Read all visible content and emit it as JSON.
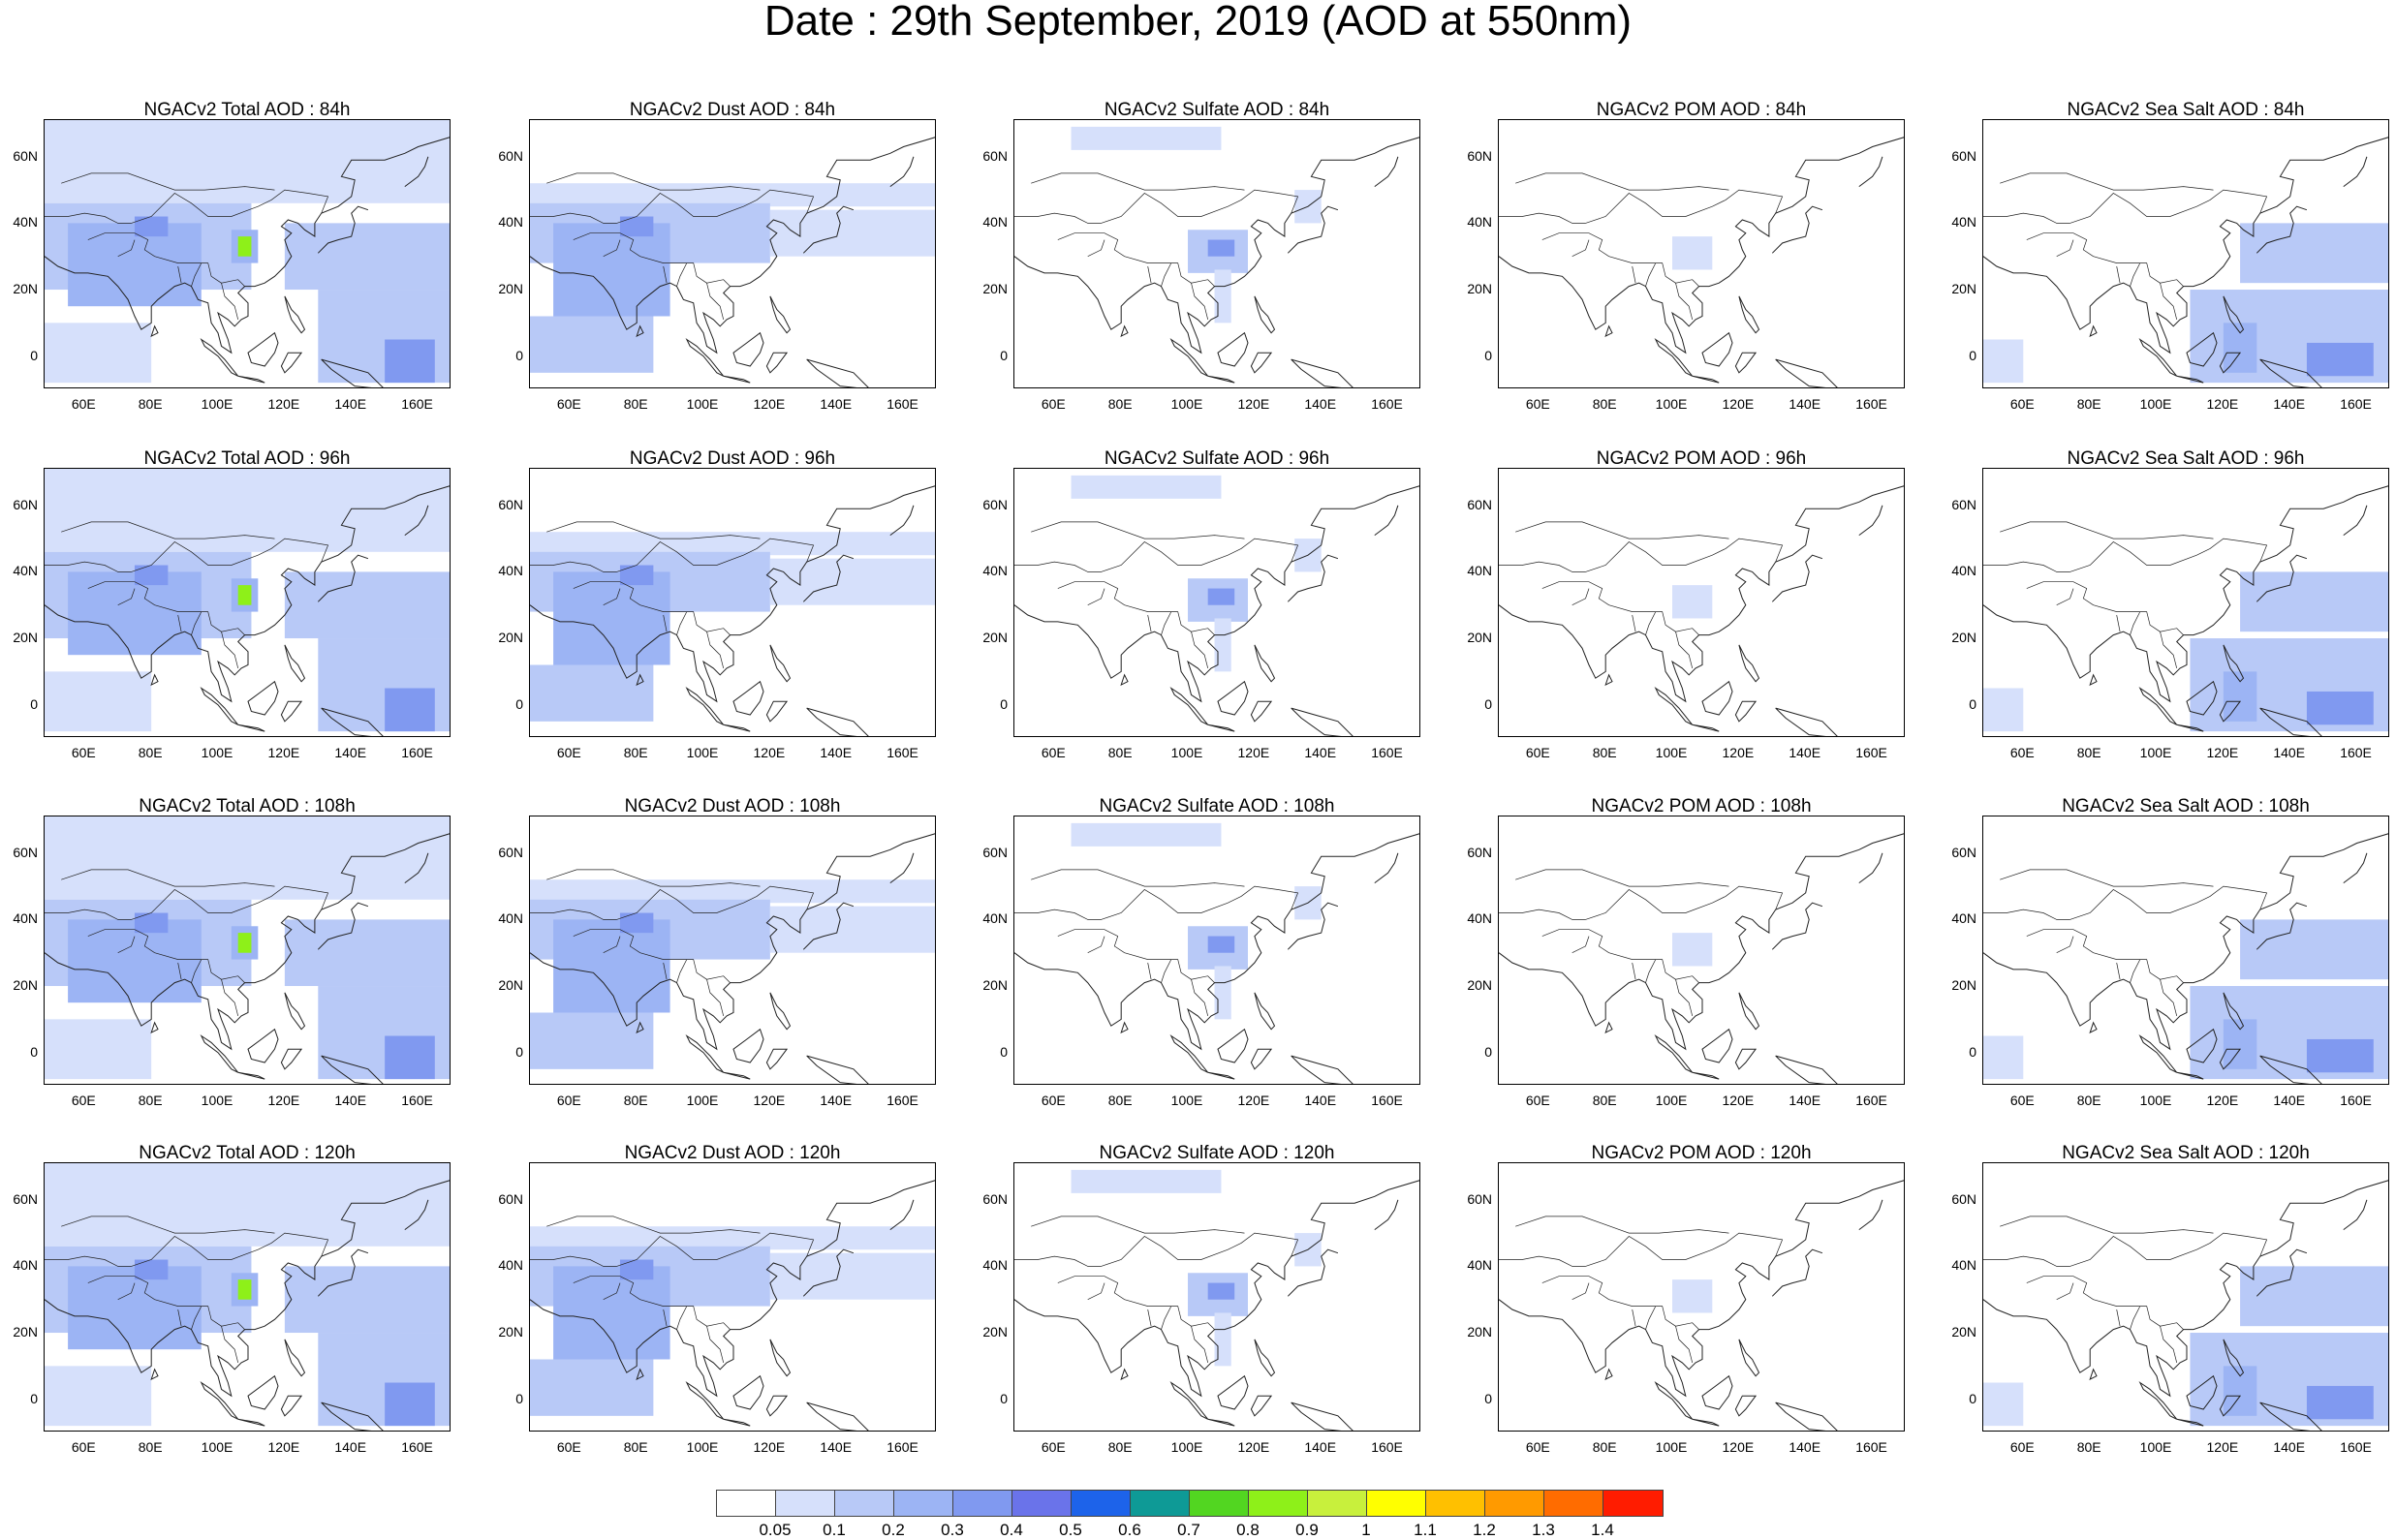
{
  "title": "Date : 29th September, 2019 (AOD at 550nm)",
  "lat_ticks": [
    "60N",
    "40N",
    "20N",
    "0"
  ],
  "lon_ticks": [
    "60E",
    "80E",
    "100E",
    "120E",
    "140E",
    "160E"
  ],
  "panels": [
    [
      "NGACv2 Total AOD : 84h",
      "NGACv2 Dust AOD : 84h",
      "NGACv2 Sulfate AOD : 84h",
      "NGACv2 POM AOD : 84h",
      "NGACv2 Sea Salt AOD : 84h"
    ],
    [
      "NGACv2 Total AOD : 96h",
      "NGACv2 Dust AOD : 96h",
      "NGACv2 Sulfate AOD : 96h",
      "NGACv2 POM AOD : 96h",
      "NGACv2 Sea Salt AOD : 96h"
    ],
    [
      "NGACv2 Total AOD : 108h",
      "NGACv2 Dust AOD : 108h",
      "NGACv2 Sulfate AOD : 108h",
      "NGACv2 POM AOD : 108h",
      "NGACv2 Sea Salt AOD : 108h"
    ],
    [
      "NGACv2 Total AOD : 120h",
      "NGACv2 Dust AOD : 120h",
      "NGACv2 Sulfate AOD : 120h",
      "NGACv2 POM AOD : 120h",
      "NGACv2 Sea Salt  AOD : 120h"
    ]
  ],
  "colorbar": {
    "labels": [
      "0.05",
      "0.1",
      "0.2",
      "0.3",
      "0.4",
      "0.5",
      "0.6",
      "0.7",
      "0.8",
      "0.9",
      "1",
      "1.1",
      "1.2",
      "1.3",
      "1.4"
    ],
    "colors": [
      "#ffffff",
      "#d6e0fb",
      "#b8c9f7",
      "#9cb4f4",
      "#8099f0",
      "#6a73ea",
      "#1d63ea",
      "#0e9a96",
      "#52d621",
      "#8ef019",
      "#c8f03c",
      "#ffff00",
      "#ffc000",
      "#ff9a00",
      "#ff6c00",
      "#ff1c00"
    ]
  }
}
